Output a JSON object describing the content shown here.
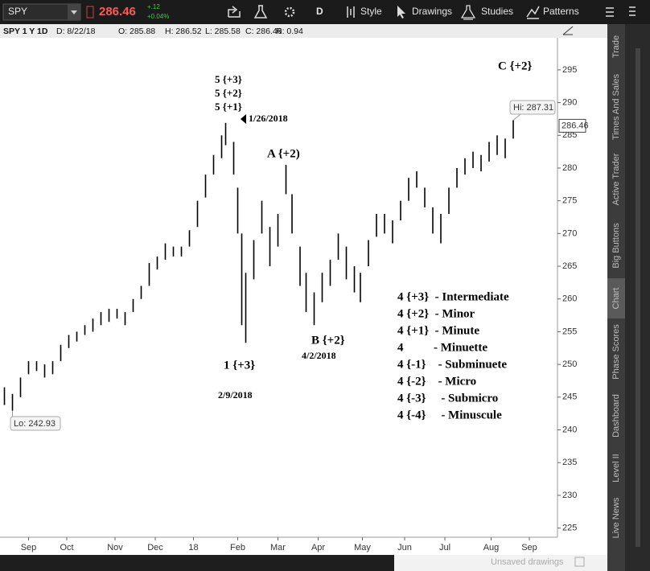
{
  "toolbar": {
    "symbol": "SPY",
    "price": "286.46",
    "change": "+.12",
    "change_pct": "+0.04%",
    "aggregation": "D",
    "buttons": [
      "Style",
      "Drawings",
      "Studies",
      "Patterns"
    ]
  },
  "info_bar": [
    "SPY 1 Y 1D",
    "D: 8/22/18",
    "O: 285.88",
    "H: 286.52",
    "L: 285.58",
    "C: 286.46",
    "R: 0.94"
  ],
  "chart_data": {
    "type": "range-bar",
    "x": [
      1,
      5,
      9,
      13,
      17,
      21,
      25,
      29,
      33,
      37,
      41,
      45,
      49,
      53,
      57,
      61,
      65,
      69,
      73,
      77,
      81,
      85,
      89,
      93,
      97,
      101,
      105,
      109,
      111,
      115,
      117,
      119,
      121,
      125,
      129,
      133,
      137,
      141,
      144,
      148,
      151,
      155,
      159,
      163,
      167,
      171,
      175,
      178,
      182,
      186,
      190,
      194,
      198,
      202,
      206,
      210,
      214,
      218,
      222,
      226,
      230,
      234,
      238,
      242,
      246,
      250,
      254
    ],
    "high": [
      246.5,
      245.5,
      248,
      250.5,
      250.5,
      250,
      250.5,
      253,
      254.5,
      255,
      256,
      257,
      258,
      258.5,
      258.5,
      258,
      260,
      262,
      265.5,
      266.5,
      268.5,
      268,
      268,
      270.5,
      275,
      279,
      282,
      285,
      286.9,
      284,
      277,
      270,
      264,
      269,
      275,
      271,
      273,
      280.5,
      276,
      268,
      264,
      261,
      264,
      266,
      270,
      268,
      265,
      264,
      269,
      273,
      273,
      272,
      275,
      278.5,
      279.5,
      277,
      274,
      273,
      277,
      280,
      281.5,
      282.5,
      282,
      284,
      285,
      284.5,
      287.31
    ],
    "low": [
      243.8,
      242.93,
      245,
      248.5,
      249,
      248,
      248.5,
      250.5,
      252.5,
      253.5,
      254.5,
      255,
      256,
      256.5,
      257,
      256,
      258,
      260,
      262,
      264.5,
      266,
      266.5,
      266.5,
      268,
      271,
      275.5,
      279,
      281.5,
      283.5,
      279,
      270,
      256,
      253.3,
      263,
      270,
      265,
      268,
      276,
      270,
      262,
      258,
      256,
      259.5,
      262,
      266,
      263,
      261,
      259.5,
      265,
      269.5,
      270,
      268.5,
      272,
      275,
      277,
      274,
      270,
      268.5,
      273,
      277,
      279,
      280,
      279.5,
      281,
      282,
      281.5,
      284.5
    ],
    "color": "#000000",
    "xlim": [
      0,
      276
    ],
    "xticks": [
      {
        "value": 13,
        "label": "Sep"
      },
      {
        "value": 32,
        "label": "Oct"
      },
      {
        "value": 56,
        "label": "Nov"
      },
      {
        "value": 76,
        "label": "Dec"
      },
      {
        "value": 95,
        "label": "18"
      },
      {
        "value": 117,
        "label": "Feb"
      },
      {
        "value": 137,
        "label": "Mar"
      },
      {
        "value": 157,
        "label": "Apr"
      },
      {
        "value": 179,
        "label": "May"
      },
      {
        "value": 200,
        "label": "Jun"
      },
      {
        "value": 220,
        "label": "Jul"
      },
      {
        "value": 243,
        "label": "Aug"
      },
      {
        "value": 262,
        "label": "Sep"
      }
    ],
    "ylim": [
      223.6,
      299.9
    ],
    "yticks": [
      225,
      230,
      235,
      240,
      245,
      250,
      255,
      260,
      265,
      270,
      275,
      280,
      285,
      290,
      295
    ],
    "last_price": 286.46,
    "hi_label": "Hi: 287.31",
    "lo_label": "Lo: 242.93",
    "annotations": [
      "5 {+3}",
      "5 {+2}",
      "5 {+1}",
      "1/26/2018",
      "A {+2)",
      "1 {+3}",
      "2/9/2018",
      "B {+2}",
      "4/2/2018",
      "C {+2}",
      "4 {+3}  - Intermediate",
      "4 {+2}  - Minor",
      "4 {+1}  - Minute",
      "4          - Minuette",
      "4 {-1}    - Subminuete",
      "4 {-2}    - Micro",
      "4 {-3}     - Submicro",
      "4 {-4}     - Minuscule"
    ]
  },
  "side_tabs": [
    "Trade",
    "Times And Sales",
    "Active Trader",
    "Big Buttons",
    "Chart",
    "Phase Scores",
    "Dashboard",
    "Level II",
    "Live News"
  ],
  "footer": {
    "drawings": "Unsaved drawings"
  }
}
